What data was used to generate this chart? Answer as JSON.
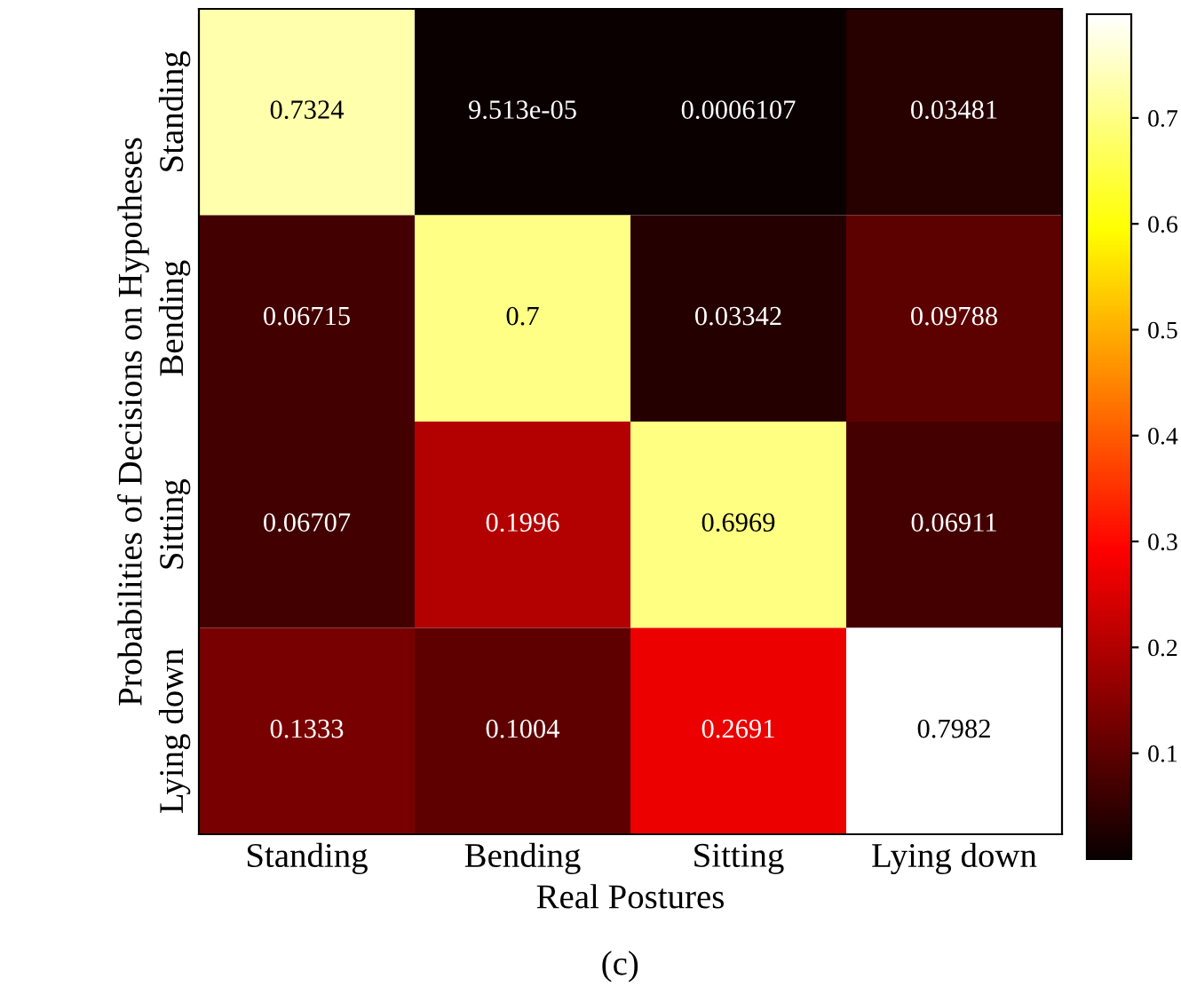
{
  "chart_data": {
    "type": "heatmap",
    "xlabel": "Real Postures",
    "ylabel": "Probabilities of Decisions on Hypotheses",
    "categories": [
      "Standing",
      "Bending",
      "Sitting",
      "Lying down"
    ],
    "y_categories": [
      "Standing",
      "Bending",
      "Sitting",
      "Lying down"
    ],
    "cells": [
      [
        0.7324,
        9.513e-05,
        0.0006107,
        0.03481
      ],
      [
        0.06715,
        0.7,
        0.03342,
        0.09788
      ],
      [
        0.06707,
        0.1996,
        0.6969,
        0.06911
      ],
      [
        0.1333,
        0.1004,
        0.2691,
        0.7982
      ]
    ],
    "cell_labels": [
      [
        "0.7324",
        "9.513e-05",
        "0.0006107",
        "0.03481"
      ],
      [
        "0.06715",
        "0.7",
        "0.03342",
        "0.09788"
      ],
      [
        "0.06707",
        "0.1996",
        "0.6969",
        "0.06911"
      ],
      [
        "0.1333",
        "0.1004",
        "0.2691",
        "0.7982"
      ]
    ],
    "clim": [
      0,
      0.798
    ],
    "cticks": [
      0.1,
      0.2,
      0.3,
      0.4,
      0.5,
      0.6,
      0.7
    ],
    "annotations": [
      "(c)"
    ]
  }
}
